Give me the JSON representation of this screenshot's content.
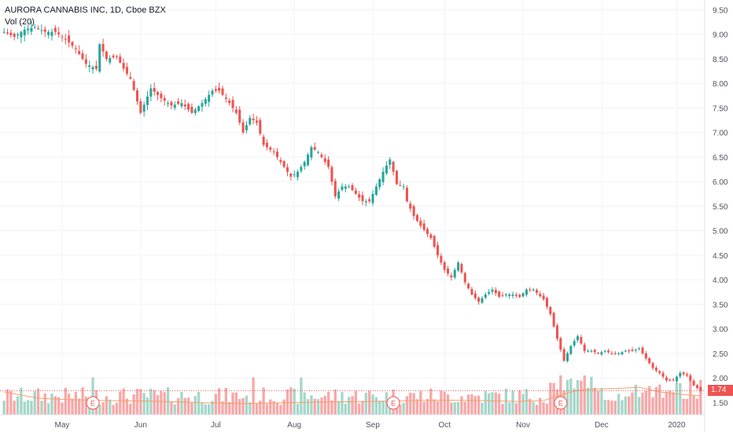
{
  "header": {
    "symbol_line": "AURORA CANNABIS INC, 1D, Cboe BZX",
    "volume_line": "Vol (20)"
  },
  "colors": {
    "up": "#26a69a",
    "down": "#ef5350",
    "up_vol": "#a5d6c9",
    "down_vol": "#f7a8a8",
    "vol_ma": "#f5a06b",
    "grid": "#f0f3fa",
    "axis_text": "#50535e",
    "last_price": "#ef5350"
  },
  "last_price_label": "1.74",
  "chart_data": {
    "type": "candlestick",
    "y_axis": {
      "min": 1.25,
      "max": 9.7,
      "ticks": [
        "1.50",
        "2.00",
        "2.50",
        "3.00",
        "3.50",
        "4.00",
        "4.50",
        "5.00",
        "5.50",
        "6.00",
        "6.50",
        "7.00",
        "7.50",
        "8.00",
        "8.50",
        "9.00",
        "9.50"
      ]
    },
    "x_axis": {
      "labels": [
        {
          "label": "May",
          "index": 17
        },
        {
          "label": "Jun",
          "index": 40
        },
        {
          "label": "Jul",
          "index": 62
        },
        {
          "label": "Aug",
          "index": 85
        },
        {
          "label": "Sep",
          "index": 108
        },
        {
          "label": "Oct",
          "index": 129
        },
        {
          "label": "Nov",
          "index": 152
        },
        {
          "label": "Dec",
          "index": 175
        },
        {
          "label": "2020",
          "index": 197
        }
      ]
    },
    "earnings_markers": [
      {
        "label": "E",
        "index": 26
      },
      {
        "label": "E",
        "index": 114
      },
      {
        "label": "E",
        "index": 163
      }
    ],
    "last_price": 1.74,
    "anchors": [
      [
        0,
        9.05
      ],
      [
        3,
        8.95
      ],
      [
        6,
        9.1
      ],
      [
        9,
        9.15
      ],
      [
        12,
        9.05
      ],
      [
        15,
        9.05
      ],
      [
        18,
        8.9
      ],
      [
        21,
        8.7
      ],
      [
        24,
        8.4
      ],
      [
        27,
        8.3
      ],
      [
        28,
        8.8
      ],
      [
        30,
        8.5
      ],
      [
        33,
        8.55
      ],
      [
        35,
        8.3
      ],
      [
        37,
        8.1
      ],
      [
        40,
        7.4
      ],
      [
        43,
        7.9
      ],
      [
        46,
        7.7
      ],
      [
        49,
        7.55
      ],
      [
        52,
        7.6
      ],
      [
        55,
        7.4
      ],
      [
        58,
        7.6
      ],
      [
        61,
        7.85
      ],
      [
        63,
        7.85
      ],
      [
        66,
        7.6
      ],
      [
        68,
        7.4
      ],
      [
        70,
        7.0
      ],
      [
        72,
        7.3
      ],
      [
        74,
        7.2
      ],
      [
        76,
        6.75
      ],
      [
        79,
        6.6
      ],
      [
        82,
        6.3
      ],
      [
        84,
        6.1
      ],
      [
        86,
        6.2
      ],
      [
        88,
        6.4
      ],
      [
        90,
        6.7
      ],
      [
        92,
        6.6
      ],
      [
        95,
        6.3
      ],
      [
        97,
        5.7
      ],
      [
        99,
        5.9
      ],
      [
        101,
        5.9
      ],
      [
        103,
        5.75
      ],
      [
        105,
        5.6
      ],
      [
        107,
        5.6
      ],
      [
        109,
        5.9
      ],
      [
        111,
        6.2
      ],
      [
        113,
        6.45
      ],
      [
        115,
        5.95
      ],
      [
        117,
        5.9
      ],
      [
        118,
        5.6
      ],
      [
        120,
        5.3
      ],
      [
        122,
        5.1
      ],
      [
        125,
        4.85
      ],
      [
        127,
        4.5
      ],
      [
        129,
        4.2
      ],
      [
        131,
        4.05
      ],
      [
        133,
        4.35
      ],
      [
        135,
        3.95
      ],
      [
        137,
        3.7
      ],
      [
        139,
        3.55
      ],
      [
        141,
        3.7
      ],
      [
        143,
        3.8
      ],
      [
        145,
        3.65
      ],
      [
        147,
        3.7
      ],
      [
        149,
        3.7
      ],
      [
        151,
        3.65
      ],
      [
        153,
        3.8
      ],
      [
        155,
        3.8
      ],
      [
        158,
        3.6
      ],
      [
        160,
        3.3
      ],
      [
        162,
        2.8
      ],
      [
        164,
        2.35
      ],
      [
        166,
        2.65
      ],
      [
        168,
        2.85
      ],
      [
        170,
        2.55
      ],
      [
        172,
        2.55
      ],
      [
        174,
        2.5
      ],
      [
        176,
        2.55
      ],
      [
        178,
        2.5
      ],
      [
        180,
        2.5
      ],
      [
        182,
        2.55
      ],
      [
        184,
        2.55
      ],
      [
        186,
        2.6
      ],
      [
        188,
        2.4
      ],
      [
        190,
        2.2
      ],
      [
        192,
        2.1
      ],
      [
        194,
        1.95
      ],
      [
        196,
        1.95
      ],
      [
        198,
        2.1
      ],
      [
        200,
        2.05
      ],
      [
        202,
        1.85
      ],
      [
        204,
        1.74
      ]
    ],
    "volume_ma": [
      [
        0,
        0.58
      ],
      [
        10,
        0.42
      ],
      [
        20,
        0.38
      ],
      [
        30,
        0.36
      ],
      [
        40,
        0.35
      ],
      [
        50,
        0.33
      ],
      [
        60,
        0.3
      ],
      [
        70,
        0.28
      ],
      [
        80,
        0.3
      ],
      [
        90,
        0.32
      ],
      [
        100,
        0.33
      ],
      [
        110,
        0.34
      ],
      [
        120,
        0.36
      ],
      [
        130,
        0.37
      ],
      [
        140,
        0.36
      ],
      [
        150,
        0.34
      ],
      [
        158,
        0.36
      ],
      [
        163,
        0.5
      ],
      [
        168,
        0.62
      ],
      [
        174,
        0.66
      ],
      [
        180,
        0.67
      ],
      [
        186,
        0.7
      ],
      [
        192,
        0.58
      ],
      [
        198,
        0.52
      ],
      [
        204,
        0.48
      ]
    ]
  }
}
